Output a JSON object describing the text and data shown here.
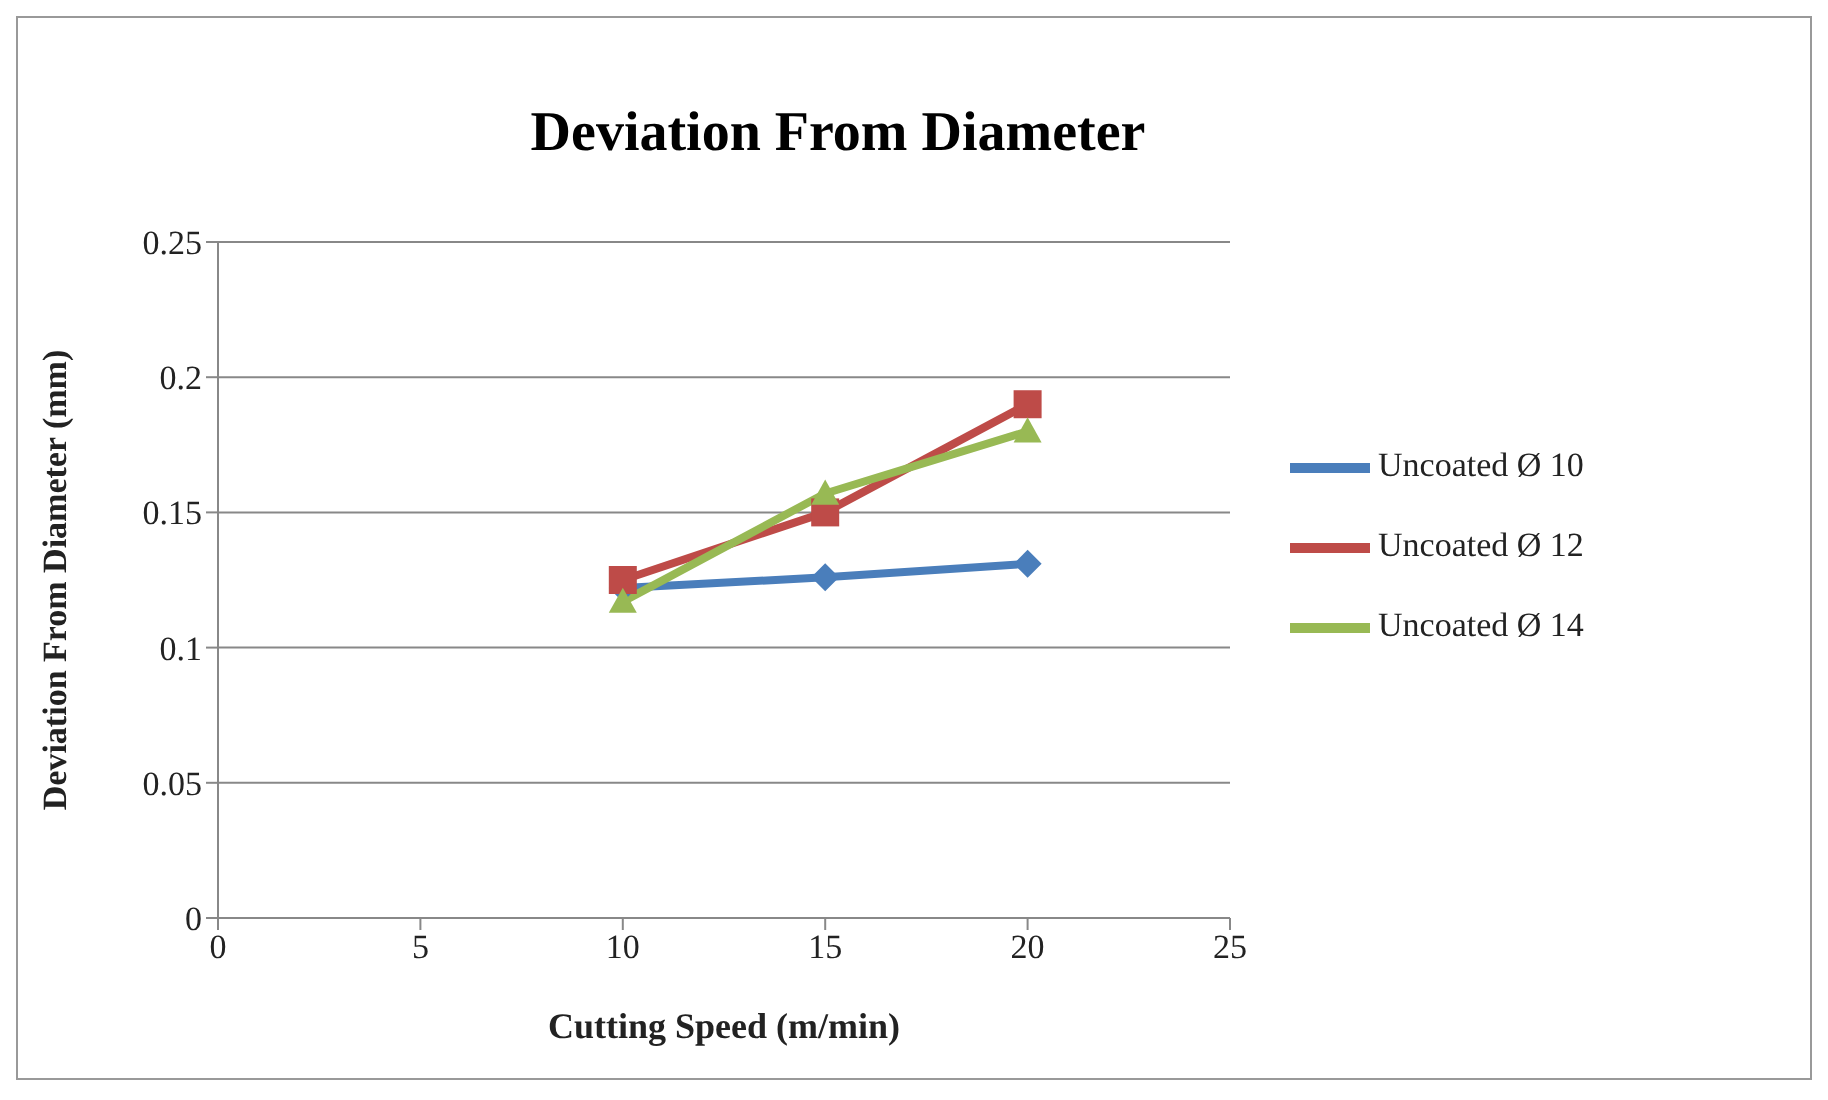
{
  "chart_data": {
    "type": "line",
    "title": "Deviation From Diameter",
    "xlabel": "Cutting Speed (m/min)",
    "ylabel": "Deviation From Diameter (mm)",
    "x": [
      10,
      15,
      20
    ],
    "series": [
      {
        "name": "Uncoated Ø 10",
        "color": "#4a7ebb",
        "marker": "diamond",
        "values": [
          0.122,
          0.126,
          0.131
        ]
      },
      {
        "name": "Uncoated Ø 12",
        "color": "#be4b48",
        "marker": "square",
        "values": [
          0.125,
          0.15,
          0.19
        ]
      },
      {
        "name": "Uncoated Ø 14",
        "color": "#98b954",
        "marker": "triangle",
        "values": [
          0.117,
          0.157,
          0.18
        ]
      }
    ],
    "xlim": [
      0,
      25
    ],
    "xticks": [
      0,
      5,
      10,
      15,
      20,
      25
    ],
    "ylim": [
      0,
      0.25
    ],
    "yticks": [
      0,
      0.05,
      0.1,
      0.15,
      0.2,
      0.25
    ],
    "grid": "y",
    "legend": "right"
  }
}
